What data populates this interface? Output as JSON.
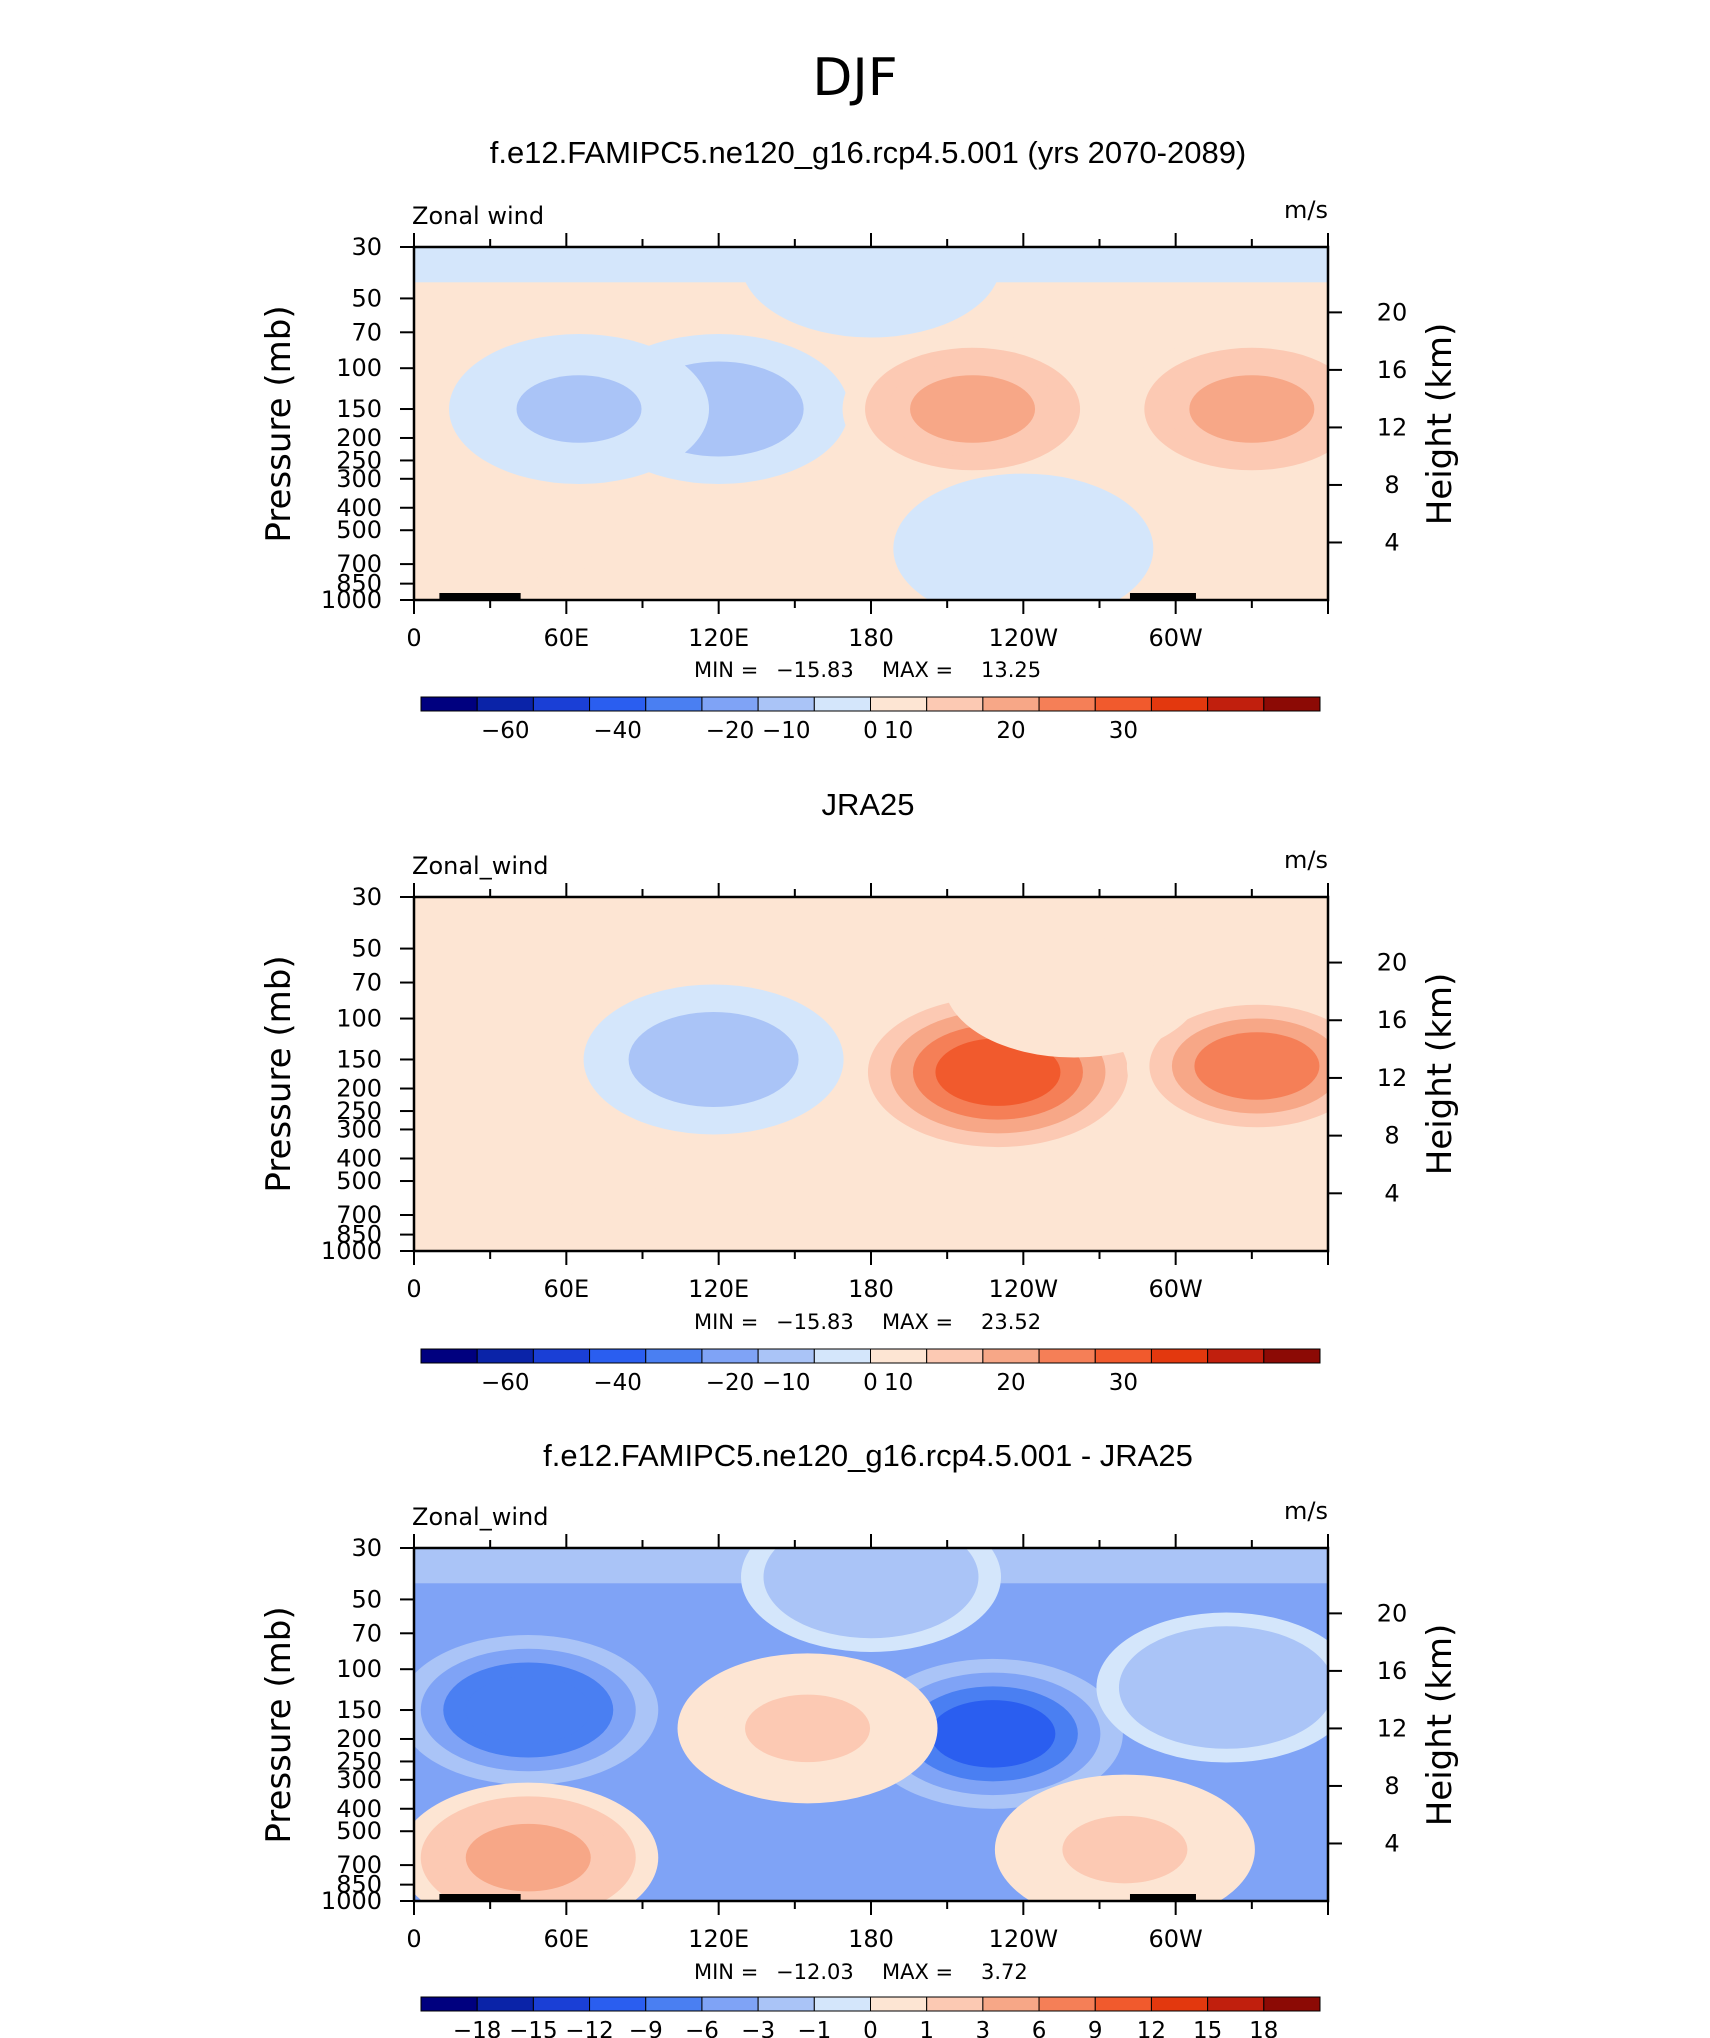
{
  "figure": {
    "title": "DJF"
  },
  "colors": {
    "cb1": [
      "#00007f",
      "#0a23a8",
      "#1a3fd6",
      "#2a5ef0",
      "#4a7ff2",
      "#7fa3f6",
      "#aac4f7",
      "#d4e6fb",
      "#fde5d3",
      "#fcc9b3",
      "#f7a787",
      "#f57f57",
      "#f15a2d",
      "#e3380e",
      "#c11f0d",
      "#8c0a05"
    ],
    "cb3": [
      "#00007f",
      "#0a23a8",
      "#1a3fd6",
      "#2a5ef0",
      "#4a7ff2",
      "#7fa3f6",
      "#aac4f7",
      "#d4e6fb",
      "#fde5d3",
      "#fcc9b3",
      "#f7a787",
      "#f57f57",
      "#f15a2d",
      "#e3380e",
      "#c11f0d",
      "#8c0a05"
    ],
    "land": "#000000",
    "axis": "#000000"
  },
  "chart_data": [
    {
      "type": "heatmap",
      "title": "f.e12.FAMIPC5.ne120_g16.rcp4.5.001 (yrs 2070-2089)",
      "left_label": "Zonal wind",
      "right_label": "m/s",
      "ylabel": "Pressure (mb)",
      "ylabel_right": "Height (km)",
      "x_ticks": [
        "0",
        "60E",
        "120E",
        "180",
        "120W",
        "60W"
      ],
      "y_ticks": [
        "30",
        "50",
        "70",
        "100",
        "150",
        "200",
        "250",
        "300",
        "400",
        "500",
        "700",
        "850",
        "1000"
      ],
      "y2_ticks": [
        "20",
        "16",
        "12",
        "8",
        "4"
      ],
      "stats": {
        "min_label": "MIN =",
        "min": "−15.83",
        "max_label": "MAX =",
        "max": "13.25"
      },
      "colorbar_labels": [
        "−60",
        "−40",
        "−20",
        "−10",
        "0",
        "10",
        "20",
        "30"
      ],
      "blobs": [
        {
          "lon": 120,
          "p": 150,
          "value": -10
        },
        {
          "lon": 65,
          "p": 150,
          "value": -6
        },
        {
          "lon": 220,
          "p": 150,
          "value": 12
        },
        {
          "lon": 330,
          "p": 150,
          "value": 10
        },
        {
          "lon": 100,
          "p": 800,
          "value": 3
        },
        {
          "lon": 240,
          "p": 600,
          "value": -3
        },
        {
          "lon": 180,
          "p": 35,
          "value": -2
        }
      ]
    },
    {
      "type": "heatmap",
      "title": "JRA25",
      "left_label": "Zonal_wind",
      "right_label": "m/s",
      "ylabel": "Pressure (mb)",
      "ylabel_right": "Height (km)",
      "x_ticks": [
        "0",
        "60E",
        "120E",
        "180",
        "120W",
        "60W"
      ],
      "y_ticks": [
        "30",
        "50",
        "70",
        "100",
        "150",
        "200",
        "250",
        "300",
        "400",
        "500",
        "700",
        "850",
        "1000"
      ],
      "y2_ticks": [
        "20",
        "16",
        "12",
        "8",
        "4"
      ],
      "stats": {
        "min_label": "MIN =",
        "min": "−15.83",
        "max_label": "MAX =",
        "max": "23.52"
      },
      "colorbar_labels": [
        "−60",
        "−40",
        "−20",
        "−10",
        "0",
        "10",
        "20",
        "30"
      ],
      "blobs": [
        {
          "lon": 118,
          "p": 150,
          "value": -8
        },
        {
          "lon": 230,
          "p": 170,
          "value": 23
        },
        {
          "lon": 332,
          "p": 160,
          "value": 16
        },
        {
          "lon": 110,
          "p": 820,
          "value": 3
        },
        {
          "lon": 260,
          "p": 70,
          "value": 3
        }
      ]
    },
    {
      "type": "heatmap",
      "title": "f.e12.FAMIPC5.ne120_g16.rcp4.5.001 - JRA25",
      "left_label": "Zonal_wind",
      "right_label": "m/s",
      "ylabel": "Pressure (mb)",
      "ylabel_right": "Height (km)",
      "x_ticks": [
        "0",
        "60E",
        "120E",
        "180",
        "120W",
        "60W"
      ],
      "y_ticks": [
        "30",
        "50",
        "70",
        "100",
        "150",
        "200",
        "250",
        "300",
        "400",
        "500",
        "700",
        "850",
        "1000"
      ],
      "y2_ticks": [
        "20",
        "16",
        "12",
        "8",
        "4"
      ],
      "stats": {
        "min_label": "MIN =",
        "min": "−12.03",
        "max_label": "MAX =",
        "max": "3.72"
      },
      "colorbar_labels": [
        "−18",
        "−15",
        "−12",
        "−9",
        "−6",
        "−3",
        "−1",
        "0",
        "1",
        "3",
        "6",
        "9",
        "12",
        "15",
        "18"
      ],
      "blobs": [
        {
          "lon": 228,
          "p": 190,
          "value": -12
        },
        {
          "lon": 45,
          "p": 150,
          "value": -9
        },
        {
          "lon": 155,
          "p": 180,
          "value": 1
        },
        {
          "lon": 45,
          "p": 650,
          "value": 3
        },
        {
          "lon": 280,
          "p": 600,
          "value": 1
        },
        {
          "lon": 320,
          "p": 120,
          "value": -3
        },
        {
          "lon": 180,
          "p": 40,
          "value": -3
        }
      ]
    }
  ]
}
